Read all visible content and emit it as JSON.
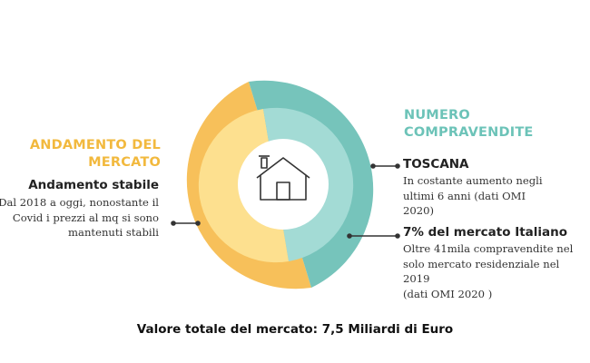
{
  "left": {
    "heading_line1": "ANDAMENTO DEL",
    "heading_line2": "MERCATO",
    "subtitle": "Andamento stabile",
    "body_lines": [
      "Dal 2018 a oggi, nonostante il",
      "Covid i prezzi al mq si sono",
      "mantenuti stabili"
    ]
  },
  "right": {
    "heading_line1": "NUMERO",
    "heading_line2": "COMPRAVENDITE",
    "toscana": {
      "title": "TOSCANA",
      "lines": [
        "In costante aumento negli",
        "ultimi 6  anni (dati OMI",
        "2020)"
      ]
    },
    "mercato": {
      "title": "7% del mercato Italiano",
      "lines": [
        "Oltre 41mila compravendite nel",
        "solo mercato residenziale nel 2019",
        "(dati OMI 2020 )"
      ]
    }
  },
  "footer": "Valore totale del mercato: 7,5 Miliardi di Euro",
  "colors": {
    "yellow_outer": "#f7c05a",
    "yellow_inner": "#fde08f",
    "teal_outer": "#76c4bb",
    "teal_inner": "#a3dbd5",
    "yellow_text": "#f2b93e",
    "teal_text": "#6cc3b8"
  },
  "icons": [
    "house-icon"
  ]
}
